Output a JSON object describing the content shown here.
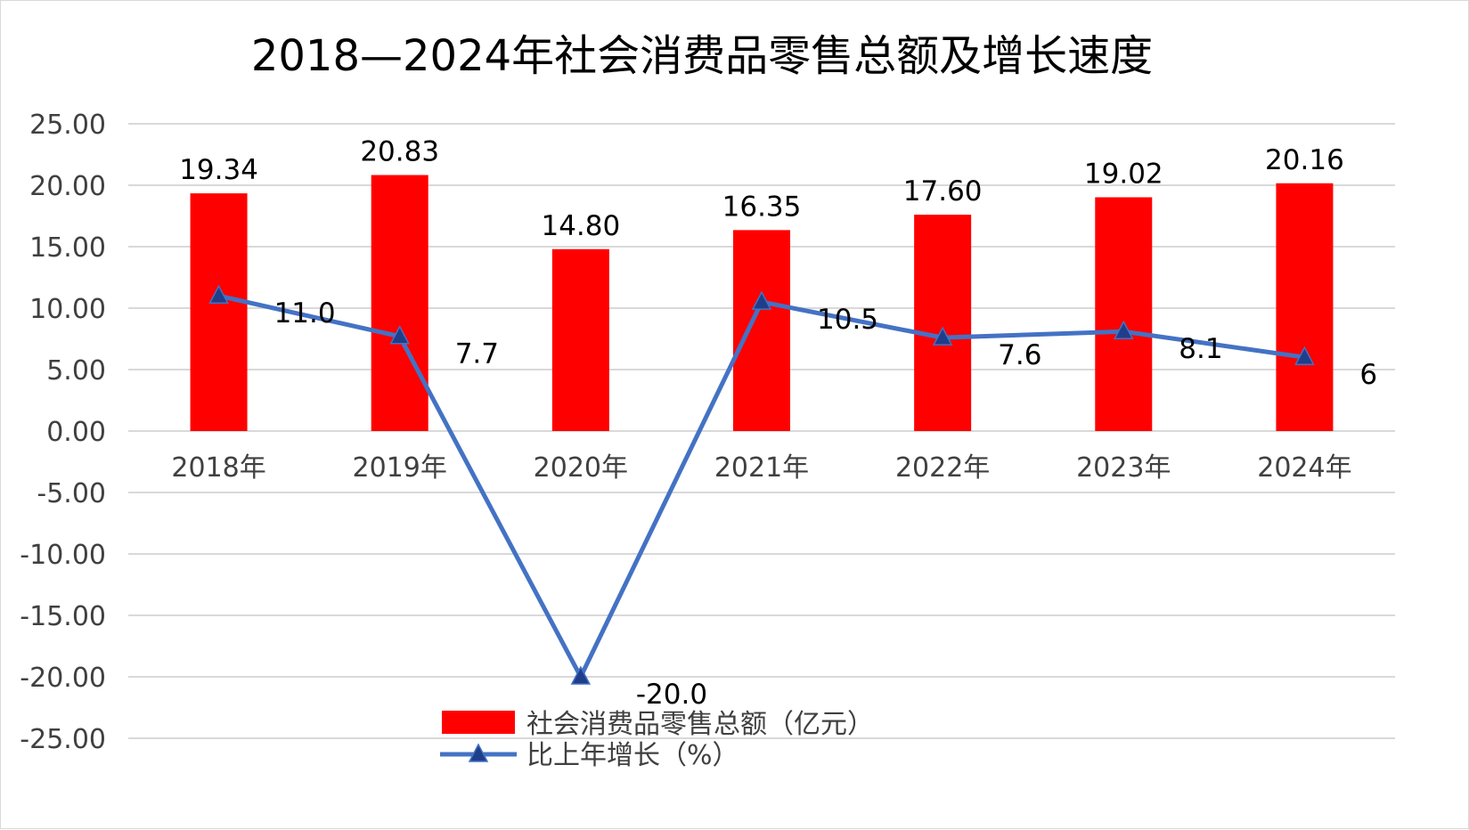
{
  "chart_data": {
    "type": "bar",
    "title": "2018—2024年社会消费品零售总额及增长速度",
    "categories": [
      "2018年",
      "2019年",
      "2020年",
      "2021年",
      "2022年",
      "2023年",
      "2024年"
    ],
    "ylim": [
      -25,
      25
    ],
    "y_ticks": [
      "25.00",
      "20.00",
      "15.00",
      "10.00",
      "5.00",
      "0.00",
      "-5.00",
      "-10.00",
      "-15.00",
      "-20.00",
      "-25.00"
    ],
    "grid": true,
    "legend_position": "bottom",
    "series": [
      {
        "name": "社会消费品零售总额（亿元）",
        "type": "bar",
        "values": [
          19.34,
          20.83,
          14.8,
          16.35,
          17.6,
          19.02,
          20.16
        ],
        "labels": [
          "19.34",
          "20.83",
          "14.80",
          "16.35",
          "17.60",
          "19.02",
          "20.16"
        ],
        "color": "#ff0000"
      },
      {
        "name": "比上年增长（%）",
        "type": "line",
        "marker": "triangle",
        "values": [
          11.0,
          7.7,
          -20.0,
          10.5,
          7.6,
          8.1,
          6
        ],
        "labels": [
          "11.0",
          "7.7",
          "-20.0",
          "10.5",
          "7.6",
          "8.1",
          "6"
        ],
        "color": "#4472c4",
        "marker_color": "#1f3e8a"
      }
    ]
  }
}
